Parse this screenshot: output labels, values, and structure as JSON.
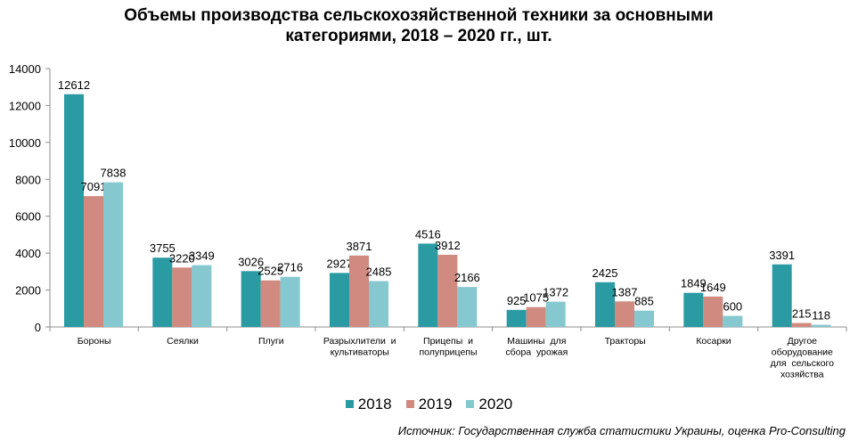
{
  "chart_data": {
    "type": "bar",
    "title": "Объемы производства сельскохозяйственной техники за основными",
    "title_line2": "категориями, 2018 – 2020 гг., шт.",
    "categories": [
      [
        "Бороны"
      ],
      [
        "Сеялки"
      ],
      [
        "Плуги"
      ],
      [
        "Разрыхлители  и",
        "культиваторы"
      ],
      [
        "Прицепы  и",
        "полуприцепы"
      ],
      [
        "Машины  для",
        "сбора  урожая"
      ],
      [
        "Тракторы"
      ],
      [
        "Косарки"
      ],
      [
        "Другое",
        "оборудование",
        "для  сельского",
        "хозяйства"
      ]
    ],
    "series": [
      {
        "name": "2018",
        "color": "#2a9aa3",
        "values": [
          12612,
          3755,
          3026,
          2927,
          4516,
          925,
          2425,
          1849,
          3391
        ]
      },
      {
        "name": "2019",
        "color": "#d08a80",
        "values": [
          7091,
          3220,
          2525,
          3871,
          3912,
          1075,
          1387,
          1649,
          215
        ]
      },
      {
        "name": "2020",
        "color": "#85c8d0",
        "values": [
          7838,
          3349,
          2716,
          2485,
          2166,
          1372,
          885,
          600,
          118
        ]
      }
    ],
    "ylim": [
      0,
      14000
    ],
    "yticks": [
      0,
      2000,
      4000,
      6000,
      8000,
      10000,
      12000,
      14000
    ],
    "grid": false,
    "legend_position": "bottom"
  },
  "source": "Источник: Государственная служба статистики Украины, оценка Pro-Consulting"
}
